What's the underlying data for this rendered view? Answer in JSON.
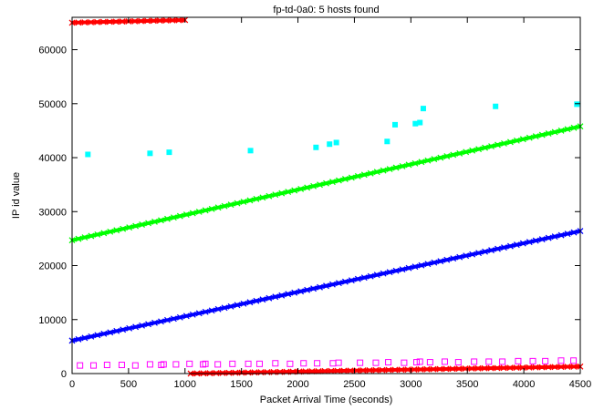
{
  "chart_data": {
    "type": "scatter",
    "title": "fp-td-0a0: 5 hosts found",
    "xlabel": "Packet Arrival Time (seconds)",
    "ylabel": "IP id value",
    "xlim": [
      0,
      4500
    ],
    "ylim": [
      0,
      66000
    ],
    "x_ticks": [
      0,
      500,
      1000,
      1500,
      2000,
      2500,
      3000,
      3500,
      4000,
      4500
    ],
    "y_ticks": [
      0,
      10000,
      20000,
      30000,
      40000,
      50000,
      60000
    ],
    "x_tick_labels": [
      "0",
      "500",
      "1000",
      "1500",
      "2000",
      "2500",
      "3000",
      "3500",
      "4000",
      "4500"
    ],
    "y_tick_labels": [
      "0",
      "10000",
      "20000",
      "30000",
      "40000",
      "50000",
      "60000"
    ],
    "grid": false,
    "legend": "none",
    "series": [
      {
        "color": "#ff0000",
        "marker": "cross",
        "kind": "dense",
        "segments": [
          {
            "x": [
              0,
              1000
            ],
            "y": [
              65000,
              65500
            ]
          },
          {
            "x": [
              1050,
              4500
            ],
            "y": [
              0,
              1300
            ]
          }
        ]
      },
      {
        "color": "#00ff00",
        "marker": "cross",
        "kind": "dense",
        "segments": [
          {
            "x": [
              0,
              4500
            ],
            "y": [
              24700,
              45800
            ]
          }
        ]
      },
      {
        "color": "#0000ff",
        "marker": "cross",
        "kind": "dense",
        "segments": [
          {
            "x": [
              0,
              4500
            ],
            "y": [
              6100,
              26400
            ]
          }
        ]
      },
      {
        "color": "#00ffff",
        "marker": "filled-square",
        "kind": "points",
        "points": [
          [
            140,
            40600
          ],
          [
            690,
            40800
          ],
          [
            860,
            41000
          ],
          [
            1580,
            41300
          ],
          [
            2160,
            41900
          ],
          [
            2280,
            42500
          ],
          [
            2340,
            42800
          ],
          [
            2790,
            43000
          ],
          [
            2860,
            46100
          ],
          [
            3040,
            46300
          ],
          [
            3080,
            46500
          ],
          [
            3110,
            49100
          ],
          [
            3750,
            49500
          ],
          [
            4470,
            49900
          ]
        ]
      },
      {
        "color": "#ff00ff",
        "marker": "open-square",
        "kind": "points",
        "points": [
          [
            70,
            1500
          ],
          [
            190,
            1500
          ],
          [
            310,
            1600
          ],
          [
            440,
            1600
          ],
          [
            560,
            1500
          ],
          [
            690,
            1700
          ],
          [
            790,
            1600
          ],
          [
            810,
            1700
          ],
          [
            920,
            1700
          ],
          [
            1040,
            1800
          ],
          [
            1160,
            1700
          ],
          [
            1180,
            1800
          ],
          [
            1290,
            1700
          ],
          [
            1420,
            1800
          ],
          [
            1560,
            1800
          ],
          [
            1660,
            1800
          ],
          [
            1800,
            1900
          ],
          [
            1930,
            1800
          ],
          [
            2050,
            1900
          ],
          [
            2170,
            1900
          ],
          [
            2310,
            1900
          ],
          [
            2360,
            2000
          ],
          [
            2550,
            2000
          ],
          [
            2690,
            2000
          ],
          [
            2800,
            2100
          ],
          [
            2940,
            2000
          ],
          [
            3050,
            2100
          ],
          [
            3080,
            2200
          ],
          [
            3170,
            2100
          ],
          [
            3300,
            2200
          ],
          [
            3420,
            2100
          ],
          [
            3560,
            2200
          ],
          [
            3690,
            2200
          ],
          [
            3810,
            2200
          ],
          [
            3950,
            2300
          ],
          [
            4080,
            2300
          ],
          [
            4190,
            2300
          ],
          [
            4330,
            2400
          ],
          [
            4440,
            2400
          ]
        ]
      }
    ]
  }
}
